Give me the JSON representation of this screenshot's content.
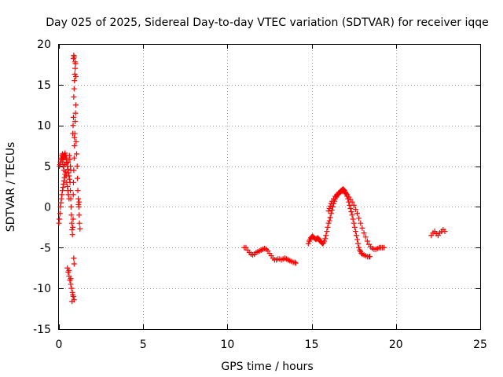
{
  "chart_data": {
    "type": "scatter",
    "title": "Day 025 of 2025, Sidereal Day-to-day VTEC variation (SDTVAR) for receiver iqqe",
    "xlabel": "GPS time / hours",
    "ylabel": "SDTVAR / TECUs",
    "xlim": [
      0,
      25
    ],
    "ylim": [
      -15,
      20
    ],
    "xticks": [
      0,
      5,
      10,
      15,
      20,
      25
    ],
    "yticks": [
      -15,
      -10,
      -5,
      0,
      5,
      10,
      15,
      20
    ],
    "grid": true,
    "marker": "+",
    "marker_color": "#ff0000",
    "series": [
      {
        "name": "SDTVAR",
        "points": [
          [
            0.0,
            -2.0
          ],
          [
            0.03,
            -1.5
          ],
          [
            0.06,
            -0.8
          ],
          [
            0.09,
            0.0
          ],
          [
            0.12,
            0.5
          ],
          [
            0.15,
            1.0
          ],
          [
            0.18,
            1.5
          ],
          [
            0.21,
            2.0
          ],
          [
            0.24,
            2.4
          ],
          [
            0.27,
            2.8
          ],
          [
            0.3,
            3.2
          ],
          [
            0.33,
            3.6
          ],
          [
            0.36,
            4.0
          ],
          [
            0.4,
            4.3
          ],
          [
            0.43,
            3.8
          ],
          [
            0.46,
            3.0
          ],
          [
            0.5,
            2.5
          ],
          [
            0.53,
            2.0
          ],
          [
            0.56,
            1.5
          ],
          [
            0.6,
            1.0
          ],
          [
            0.03,
            5.0
          ],
          [
            0.06,
            5.2
          ],
          [
            0.09,
            5.5
          ],
          [
            0.12,
            5.8
          ],
          [
            0.15,
            6.0
          ],
          [
            0.18,
            6.3
          ],
          [
            0.21,
            6.5
          ],
          [
            0.24,
            6.2
          ],
          [
            0.27,
            5.9
          ],
          [
            0.3,
            6.1
          ],
          [
            0.33,
            6.4
          ],
          [
            0.36,
            6.6
          ],
          [
            0.4,
            6.3
          ],
          [
            0.43,
            5.8
          ],
          [
            0.46,
            5.4
          ],
          [
            0.5,
            5.0
          ],
          [
            0.53,
            4.6
          ],
          [
            0.56,
            4.2
          ],
          [
            0.6,
            3.8
          ],
          [
            0.63,
            3.4
          ],
          [
            0.2,
            5.5
          ],
          [
            0.25,
            5.0
          ],
          [
            0.3,
            4.5
          ],
          [
            0.35,
            5.2
          ],
          [
            0.45,
            6.0
          ],
          [
            0.55,
            5.5
          ],
          [
            0.62,
            6.3
          ],
          [
            0.65,
            5.8
          ],
          [
            0.68,
            5.0
          ],
          [
            0.7,
            4.5
          ],
          [
            0.66,
            3.0
          ],
          [
            0.68,
            2.0
          ],
          [
            0.7,
            1.0
          ],
          [
            0.72,
            0.0
          ],
          [
            0.74,
            -1.0
          ],
          [
            0.76,
            -2.0
          ],
          [
            0.78,
            -2.8
          ],
          [
            0.8,
            -3.4
          ],
          [
            0.82,
            -2.5
          ],
          [
            0.84,
            -1.5
          ],
          [
            0.85,
            1.5
          ],
          [
            0.86,
            3.0
          ],
          [
            0.88,
            4.5
          ],
          [
            0.9,
            6.0
          ],
          [
            0.92,
            7.5
          ],
          [
            0.94,
            9.0
          ],
          [
            0.96,
            10.5
          ],
          [
            0.98,
            11.5
          ],
          [
            1.0,
            12.5
          ],
          [
            0.88,
            13.5
          ],
          [
            0.9,
            14.5
          ],
          [
            0.92,
            15.5
          ],
          [
            0.94,
            16.3
          ],
          [
            0.96,
            17.0
          ],
          [
            0.98,
            17.6
          ],
          [
            0.86,
            18.2
          ],
          [
            0.88,
            18.6
          ],
          [
            0.9,
            18.4
          ],
          [
            0.95,
            17.8
          ],
          [
            1.0,
            16.0
          ],
          [
            0.82,
            9.0
          ],
          [
            0.84,
            10.0
          ],
          [
            0.86,
            11.0
          ],
          [
            0.92,
            8.5
          ],
          [
            1.02,
            8.0
          ],
          [
            1.05,
            6.5
          ],
          [
            1.08,
            5.0
          ],
          [
            1.1,
            3.5
          ],
          [
            1.12,
            2.0
          ],
          [
            1.15,
            1.0
          ],
          [
            1.18,
            0.0
          ],
          [
            1.2,
            -1.0
          ],
          [
            1.22,
            -2.0
          ],
          [
            1.25,
            -2.7
          ],
          [
            1.2,
            0.6
          ],
          [
            1.16,
            0.3
          ],
          [
            0.5,
            -7.5
          ],
          [
            0.55,
            -8.0
          ],
          [
            0.6,
            -8.5
          ],
          [
            0.65,
            -9.0
          ],
          [
            0.7,
            -9.5
          ],
          [
            0.75,
            -10.0
          ],
          [
            0.8,
            -10.5
          ],
          [
            0.85,
            -11.0
          ],
          [
            0.9,
            -11.4
          ],
          [
            0.78,
            -11.6
          ],
          [
            0.6,
            -7.8
          ],
          [
            0.7,
            -8.8
          ],
          [
            0.88,
            -6.3
          ],
          [
            0.9,
            -7.0
          ],
          [
            0.82,
            -10.8
          ],
          [
            11.0,
            -5.0
          ],
          [
            11.1,
            -5.0
          ],
          [
            11.2,
            -5.3
          ],
          [
            11.3,
            -5.6
          ],
          [
            11.4,
            -5.8
          ],
          [
            11.5,
            -5.9
          ],
          [
            11.6,
            -5.8
          ],
          [
            11.7,
            -5.6
          ],
          [
            11.8,
            -5.5
          ],
          [
            11.9,
            -5.4
          ],
          [
            12.0,
            -5.3
          ],
          [
            12.1,
            -5.2
          ],
          [
            12.2,
            -5.1
          ],
          [
            12.3,
            -5.2
          ],
          [
            12.4,
            -5.4
          ],
          [
            12.5,
            -5.7
          ],
          [
            12.6,
            -6.0
          ],
          [
            12.7,
            -6.3
          ],
          [
            12.8,
            -6.5
          ],
          [
            12.9,
            -6.5
          ],
          [
            13.0,
            -6.4
          ],
          [
            13.1,
            -6.4
          ],
          [
            13.2,
            -6.5
          ],
          [
            13.3,
            -6.4
          ],
          [
            13.4,
            -6.3
          ],
          [
            13.5,
            -6.4
          ],
          [
            13.6,
            -6.5
          ],
          [
            13.7,
            -6.6
          ],
          [
            13.8,
            -6.7
          ],
          [
            13.9,
            -6.8
          ],
          [
            14.0,
            -6.8
          ],
          [
            14.05,
            -6.9
          ],
          [
            14.8,
            -4.5
          ],
          [
            14.85,
            -4.2
          ],
          [
            14.9,
            -4.0
          ],
          [
            14.95,
            -3.8
          ],
          [
            15.0,
            -3.7
          ],
          [
            15.05,
            -3.6
          ],
          [
            15.1,
            -3.7
          ],
          [
            15.15,
            -3.8
          ],
          [
            15.2,
            -3.9
          ],
          [
            15.25,
            -4.0
          ],
          [
            15.3,
            -3.9
          ],
          [
            15.35,
            -3.8
          ],
          [
            15.4,
            -3.9
          ],
          [
            15.45,
            -4.0
          ],
          [
            15.5,
            -4.2
          ],
          [
            15.55,
            -4.3
          ],
          [
            15.6,
            -4.4
          ],
          [
            15.65,
            -4.5
          ],
          [
            15.7,
            -4.4
          ],
          [
            15.75,
            -4.2
          ],
          [
            15.8,
            -3.9
          ],
          [
            15.85,
            -3.5
          ],
          [
            15.9,
            -3.0
          ],
          [
            15.95,
            -2.5
          ],
          [
            16.0,
            -2.0
          ],
          [
            16.05,
            -1.7
          ],
          [
            16.1,
            -1.3
          ],
          [
            16.15,
            -0.8
          ],
          [
            16.2,
            -0.4
          ],
          [
            16.25,
            0.0
          ],
          [
            16.3,
            0.4
          ],
          [
            16.35,
            0.7
          ],
          [
            16.4,
            1.0
          ],
          [
            16.45,
            1.2
          ],
          [
            16.5,
            1.4
          ],
          [
            16.55,
            1.5
          ],
          [
            16.6,
            1.6
          ],
          [
            16.65,
            1.8
          ],
          [
            16.7,
            1.9
          ],
          [
            16.75,
            2.0
          ],
          [
            16.8,
            2.1
          ],
          [
            16.85,
            2.2
          ],
          [
            16.9,
            2.1
          ],
          [
            16.95,
            2.0
          ],
          [
            17.0,
            1.8
          ],
          [
            17.05,
            1.6
          ],
          [
            17.1,
            1.3
          ],
          [
            17.15,
            1.0
          ],
          [
            17.2,
            0.6
          ],
          [
            17.25,
            0.2
          ],
          [
            17.3,
            -0.2
          ],
          [
            17.35,
            -0.6
          ],
          [
            17.4,
            -1.0
          ],
          [
            17.45,
            -1.5
          ],
          [
            17.5,
            -2.0
          ],
          [
            17.55,
            -2.5
          ],
          [
            17.6,
            -3.0
          ],
          [
            17.65,
            -3.5
          ],
          [
            17.7,
            -4.0
          ],
          [
            17.75,
            -4.5
          ],
          [
            17.8,
            -5.0
          ],
          [
            17.85,
            -5.3
          ],
          [
            17.9,
            -5.5
          ],
          [
            17.95,
            -5.7
          ],
          [
            18.0,
            -5.8
          ],
          [
            18.1,
            -5.9
          ],
          [
            18.2,
            -6.0
          ],
          [
            18.3,
            -6.1
          ],
          [
            18.4,
            -6.1
          ],
          [
            18.45,
            -6.1
          ],
          [
            16.0,
            -0.5
          ],
          [
            16.05,
            -0.2
          ],
          [
            16.1,
            0.1
          ],
          [
            16.15,
            0.4
          ],
          [
            16.2,
            0.7
          ],
          [
            16.3,
            1.0
          ],
          [
            16.4,
            1.3
          ],
          [
            16.5,
            1.5
          ],
          [
            16.6,
            1.7
          ],
          [
            16.7,
            1.8
          ],
          [
            16.8,
            1.9
          ],
          [
            16.9,
            1.9
          ],
          [
            17.0,
            1.7
          ],
          [
            17.1,
            1.5
          ],
          [
            17.2,
            1.2
          ],
          [
            17.3,
            0.9
          ],
          [
            17.4,
            0.6
          ],
          [
            17.5,
            0.2
          ],
          [
            17.6,
            -0.3
          ],
          [
            17.7,
            -0.8
          ],
          [
            17.8,
            -1.4
          ],
          [
            17.9,
            -2.0
          ],
          [
            18.0,
            -2.6
          ],
          [
            18.1,
            -3.2
          ],
          [
            18.2,
            -3.7
          ],
          [
            18.3,
            -4.2
          ],
          [
            18.4,
            -4.6
          ],
          [
            18.5,
            -4.9
          ],
          [
            18.6,
            -5.1
          ],
          [
            18.7,
            -5.2
          ],
          [
            18.8,
            -5.2
          ],
          [
            18.9,
            -5.1
          ],
          [
            19.0,
            -5.0
          ],
          [
            19.1,
            -5.0
          ],
          [
            19.2,
            -5.0
          ],
          [
            19.3,
            -5.0
          ],
          [
            22.1,
            -3.5
          ],
          [
            22.2,
            -3.2
          ],
          [
            22.3,
            -3.0
          ],
          [
            22.4,
            -3.3
          ],
          [
            22.5,
            -3.5
          ],
          [
            22.6,
            -3.2
          ],
          [
            22.7,
            -3.0
          ],
          [
            22.8,
            -2.8
          ],
          [
            22.9,
            -3.0
          ]
        ]
      }
    ]
  }
}
